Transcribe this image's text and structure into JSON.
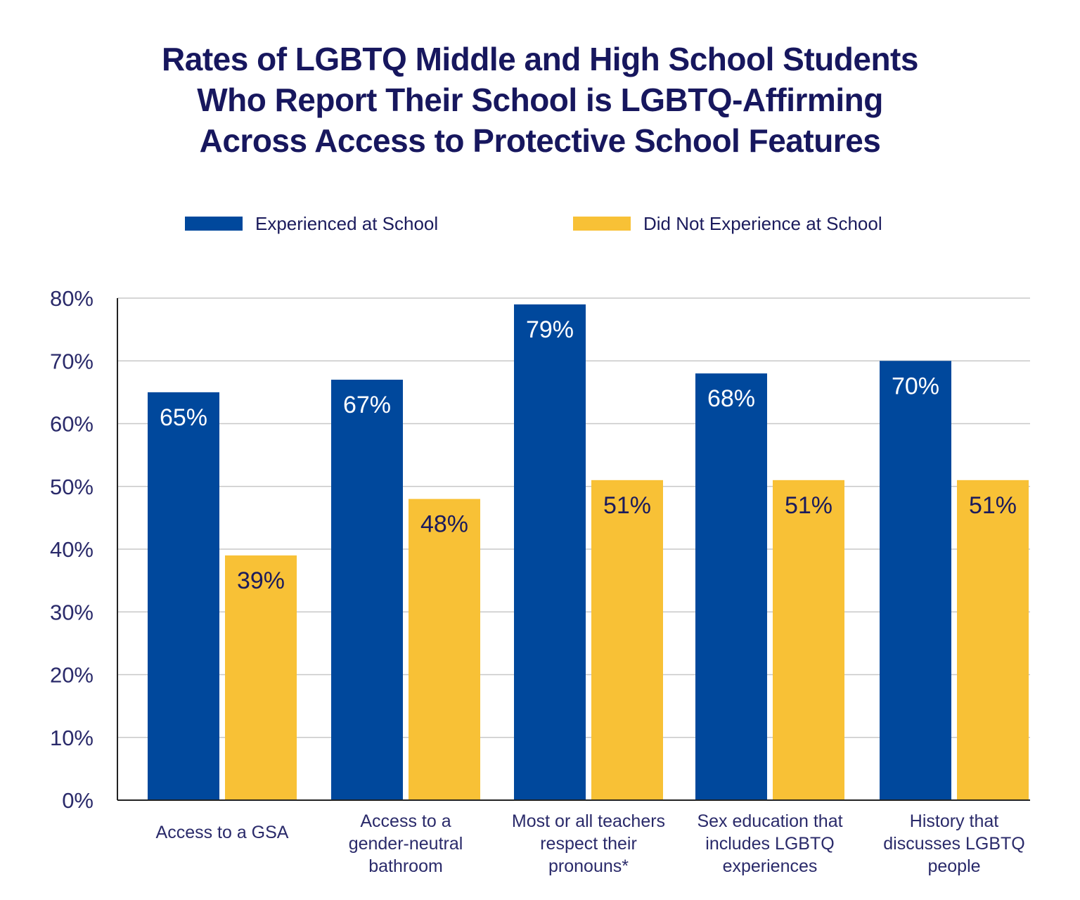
{
  "chart_data": {
    "type": "bar",
    "title": [
      "Rates of LGBTQ Middle and High School Students",
      "Who Report Their School is LGBTQ-Affirming",
      "Across Access to Protective School Features"
    ],
    "categories": [
      [
        "Access to a GSA"
      ],
      [
        "Access to a",
        "gender-neutral",
        "bathroom"
      ],
      [
        "Most or all teachers",
        "respect their",
        "pronouns*"
      ],
      [
        "Sex education that",
        "includes LGBTQ",
        "experiences"
      ],
      [
        "History that",
        "discusses LGBTQ",
        "people"
      ]
    ],
    "series": [
      {
        "name": "Experienced at School",
        "color": "#00489c",
        "values": [
          65,
          67,
          79,
          68,
          70
        ]
      },
      {
        "name": "Did Not Experience at School",
        "color": "#f8c136",
        "values": [
          39,
          48,
          51,
          51,
          51
        ]
      }
    ],
    "ylim": [
      0,
      80
    ],
    "yticks": [
      0,
      10,
      20,
      30,
      40,
      50,
      60,
      70,
      80
    ],
    "ytick_format": "%",
    "grid": true,
    "legend": "top",
    "xlabel": "",
    "ylabel": ""
  }
}
